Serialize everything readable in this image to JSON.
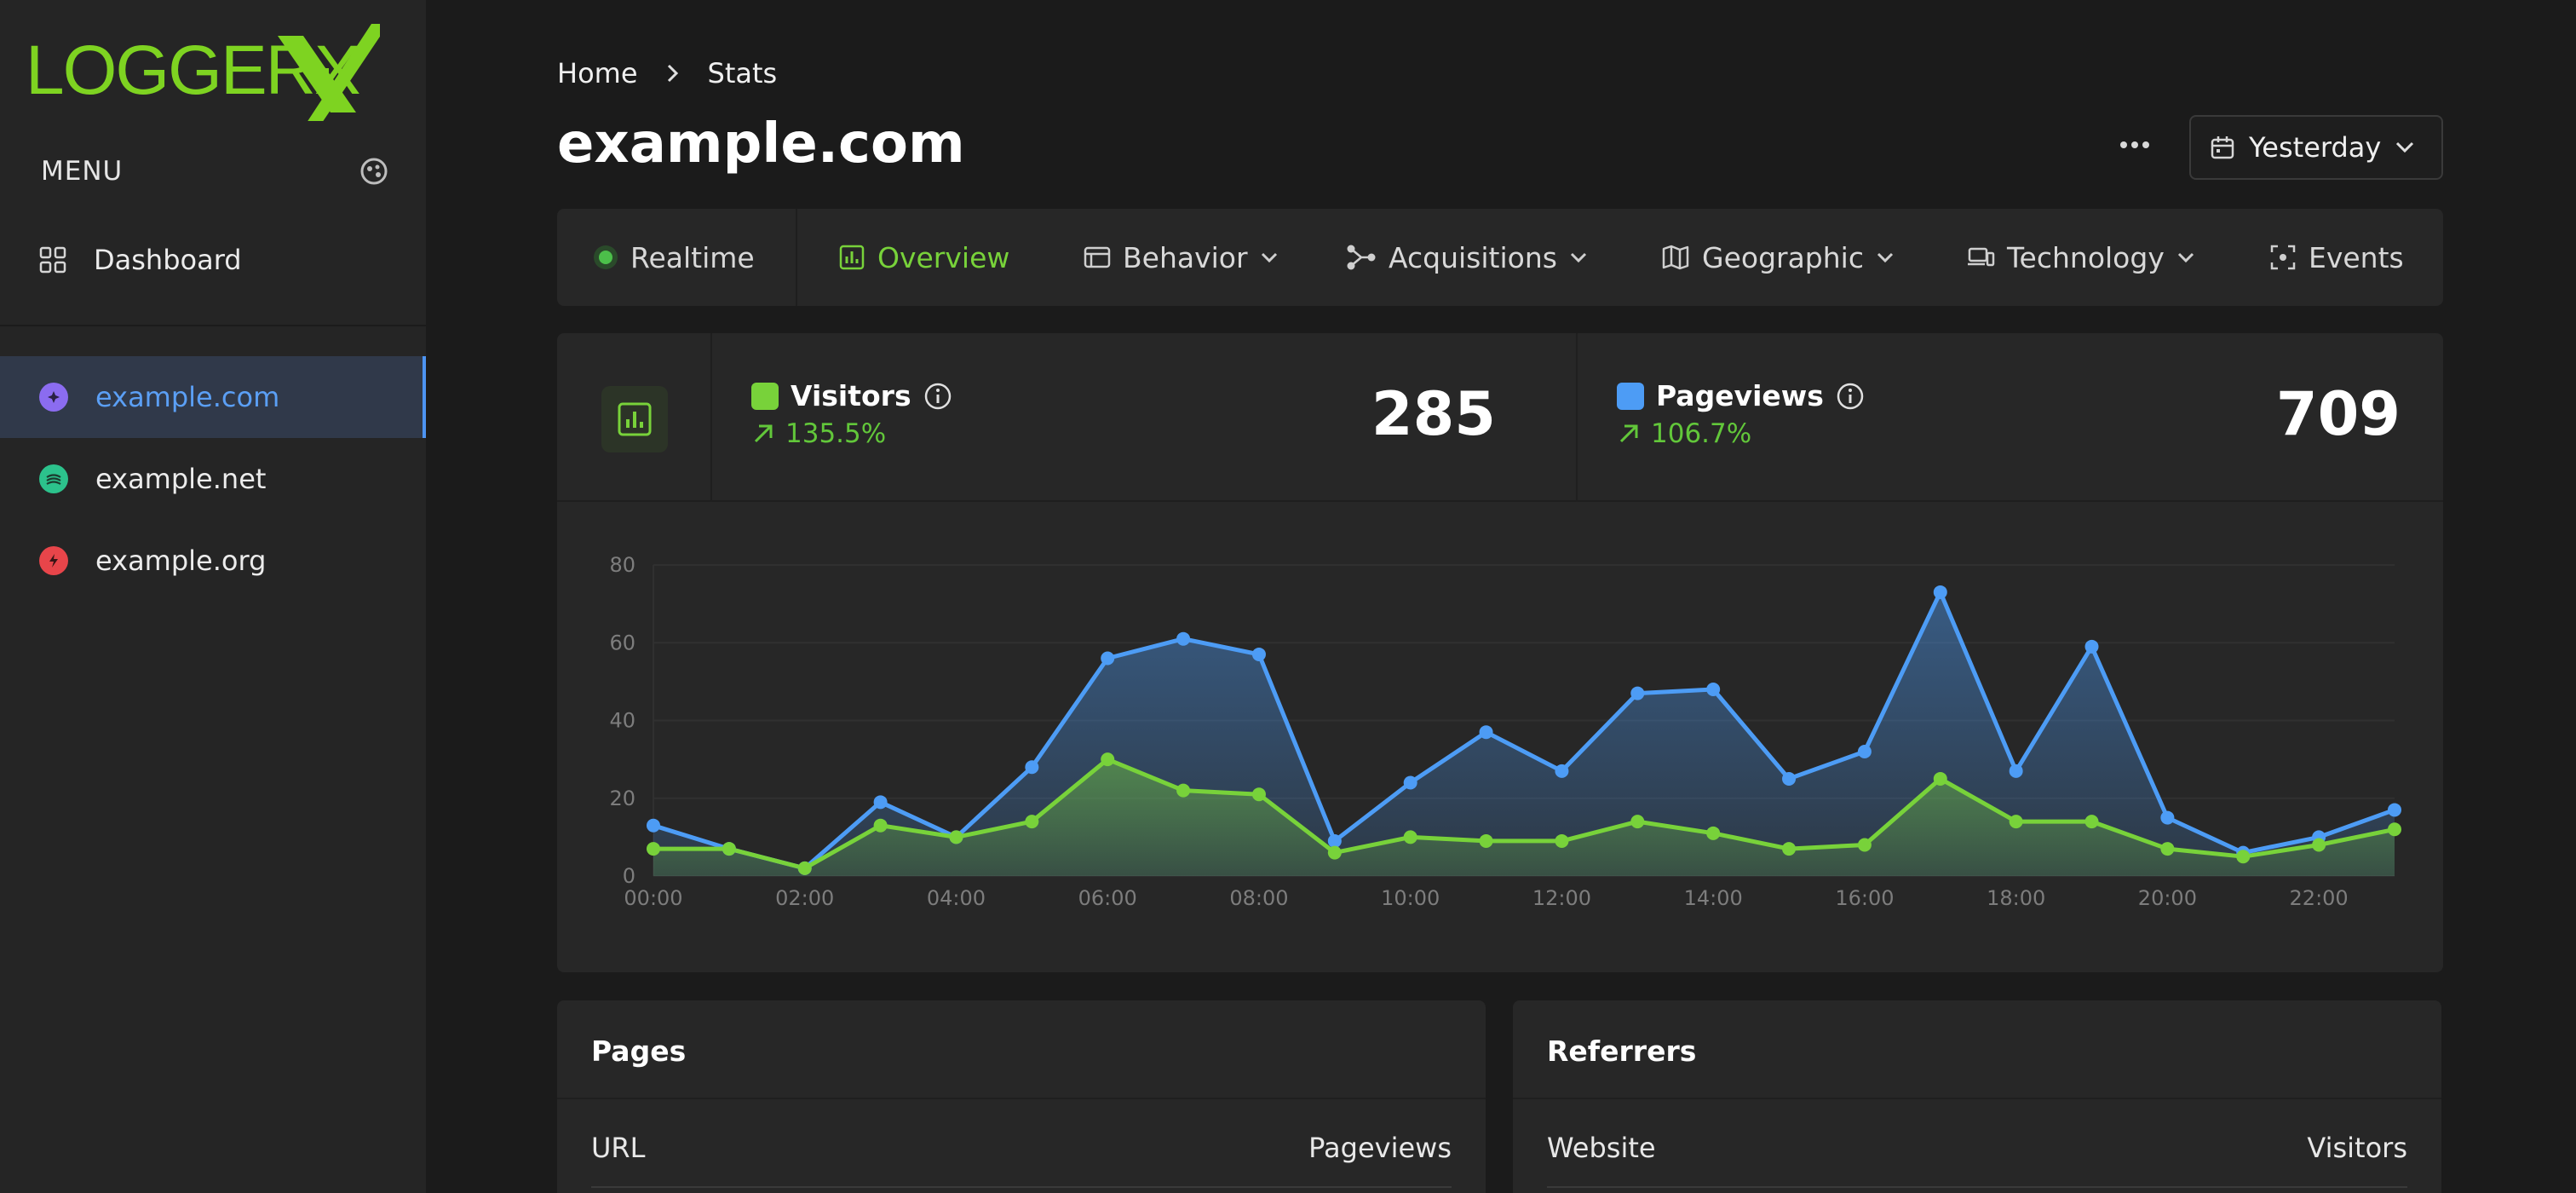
{
  "app": {
    "logo_text": "LOGGERX"
  },
  "sidebar": {
    "menu_title": "MENU",
    "dashboard_label": "Dashboard",
    "sites": [
      {
        "label": "example.com",
        "color": "#8b6cf0",
        "active": true
      },
      {
        "label": "example.net",
        "color": "#2cc28c",
        "active": false
      },
      {
        "label": "example.org",
        "color": "#e8454a",
        "active": false
      }
    ]
  },
  "header": {
    "breadcrumb": [
      "Home",
      "Stats"
    ],
    "title": "example.com",
    "date_range": "Yesterday"
  },
  "tabs": [
    {
      "label": "Realtime",
      "icon": "status-dot-icon"
    },
    {
      "label": "Overview",
      "icon": "bar-chart-icon",
      "active": true
    },
    {
      "label": "Behavior",
      "icon": "browser-window-icon",
      "dropdown": true
    },
    {
      "label": "Acquisitions",
      "icon": "share-nodes-icon",
      "dropdown": true
    },
    {
      "label": "Geographic",
      "icon": "map-icon",
      "dropdown": true
    },
    {
      "label": "Technology",
      "icon": "devices-icon",
      "dropdown": true
    },
    {
      "label": "Events",
      "icon": "focus-icon"
    }
  ],
  "metrics": {
    "visitors": {
      "label": "Visitors",
      "change": "135.5%",
      "value": "285",
      "color": "#78d23a"
    },
    "pageviews": {
      "label": "Pageviews",
      "change": "106.7%",
      "value": "709",
      "color": "#4d9cf5"
    }
  },
  "chart_data": {
    "type": "area",
    "x": [
      "00:00",
      "01:00",
      "02:00",
      "03:00",
      "04:00",
      "05:00",
      "06:00",
      "07:00",
      "08:00",
      "09:00",
      "10:00",
      "11:00",
      "12:00",
      "13:00",
      "14:00",
      "15:00",
      "16:00",
      "17:00",
      "18:00",
      "19:00",
      "20:00",
      "21:00",
      "22:00",
      "23:00"
    ],
    "tick_labels": [
      "00:00",
      "02:00",
      "04:00",
      "06:00",
      "08:00",
      "10:00",
      "12:00",
      "14:00",
      "16:00",
      "18:00",
      "20:00",
      "22:00"
    ],
    "ylim": [
      0,
      80
    ],
    "yticks": [
      0,
      20,
      40,
      60,
      80
    ],
    "series": [
      {
        "name": "Pageviews",
        "color": "#4d9cf5",
        "values": [
          13,
          7,
          2,
          19,
          10,
          28,
          56,
          61,
          57,
          9,
          24,
          37,
          27,
          47,
          48,
          25,
          32,
          73,
          27,
          59,
          15,
          6,
          10,
          17
        ]
      },
      {
        "name": "Visitors",
        "color": "#78d23a",
        "values": [
          7,
          7,
          2,
          13,
          10,
          14,
          30,
          22,
          21,
          6,
          10,
          9,
          9,
          14,
          11,
          7,
          8,
          25,
          14,
          14,
          7,
          5,
          8,
          12
        ]
      }
    ],
    "grid": true
  },
  "panels": {
    "pages": {
      "title": "Pages",
      "col_left": "URL",
      "col_right": "Pageviews"
    },
    "referrers": {
      "title": "Referrers",
      "col_left": "Website",
      "col_right": "Visitors"
    }
  }
}
